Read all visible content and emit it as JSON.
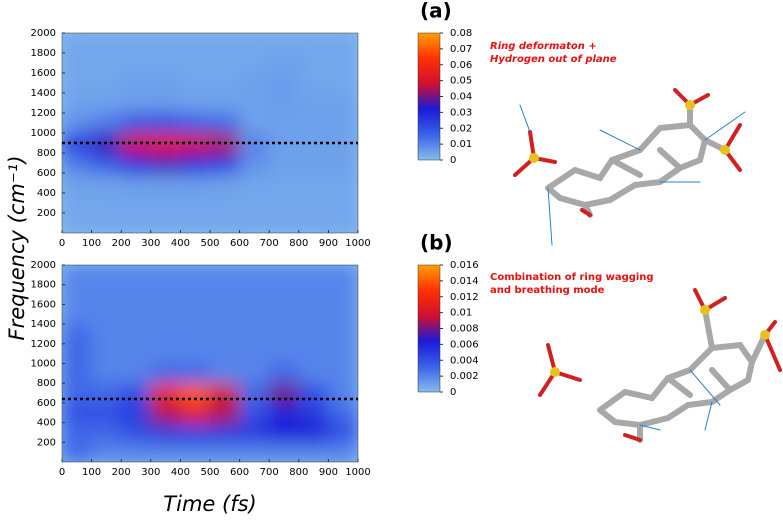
{
  "chart_data": [
    {
      "type": "heatmap",
      "panel_label": "(a)",
      "annotation": [
        "Ring deformaton +",
        "Hydrogen out of plane"
      ],
      "ylabel": "Frequency (cm⁻¹)",
      "xlim": [
        0,
        1000
      ],
      "ylim": [
        0,
        2000
      ],
      "xticks": [
        0,
        100,
        200,
        300,
        400,
        500,
        600,
        700,
        800,
        900,
        1000
      ],
      "yticks": [
        200,
        400,
        600,
        800,
        1000,
        1200,
        1400,
        1600,
        1800,
        2000
      ],
      "xbins": [
        0,
        100,
        200,
        300,
        400,
        500,
        600,
        700,
        800,
        900,
        1000
      ],
      "ybins": [
        0,
        200,
        400,
        600,
        800,
        1000,
        1200,
        1400,
        1600,
        1800,
        2000
      ],
      "z": [
        [
          0.004,
          0.004,
          0.004,
          0.004,
          0.004,
          0.004,
          0.004,
          0.004,
          0.004,
          0.004
        ],
        [
          0.004,
          0.004,
          0.004,
          0.004,
          0.004,
          0.004,
          0.004,
          0.004,
          0.004,
          0.004
        ],
        [
          0.005,
          0.005,
          0.006,
          0.006,
          0.006,
          0.005,
          0.004,
          0.004,
          0.004,
          0.004
        ],
        [
          0.012,
          0.018,
          0.03,
          0.035,
          0.03,
          0.025,
          0.008,
          0.005,
          0.005,
          0.005
        ],
        [
          0.025,
          0.035,
          0.05,
          0.055,
          0.05,
          0.045,
          0.01,
          0.005,
          0.005,
          0.005
        ],
        [
          0.008,
          0.012,
          0.02,
          0.022,
          0.018,
          0.015,
          0.005,
          0.005,
          0.005,
          0.005
        ],
        [
          0.005,
          0.005,
          0.006,
          0.006,
          0.005,
          0.005,
          0.005,
          0.006,
          0.005,
          0.005
        ],
        [
          0.004,
          0.004,
          0.005,
          0.005,
          0.004,
          0.004,
          0.005,
          0.006,
          0.004,
          0.004
        ],
        [
          0.004,
          0.004,
          0.004,
          0.004,
          0.004,
          0.004,
          0.004,
          0.005,
          0.004,
          0.004
        ],
        [
          0.004,
          0.004,
          0.004,
          0.004,
          0.004,
          0.004,
          0.004,
          0.004,
          0.004,
          0.004
        ]
      ],
      "zlim": [
        0,
        0.08
      ],
      "zticks": [
        0,
        0.01,
        0.02,
        0.03,
        0.04,
        0.05,
        0.06,
        0.07,
        0.08
      ],
      "colors": [
        "#86bdec",
        "#3a62e8",
        "#1a1ad8",
        "#d01030",
        "#ff3000",
        "#ffa000"
      ],
      "hline": 900
    },
    {
      "type": "heatmap",
      "panel_label": "(b)",
      "annotation": [
        "Combination of ring wagging",
        "and breathing mode"
      ],
      "xlabel": "Time (fs)",
      "xlim": [
        0,
        1000
      ],
      "ylim": [
        0,
        2000
      ],
      "xticks": [
        0,
        100,
        200,
        300,
        400,
        500,
        600,
        700,
        800,
        900,
        1000
      ],
      "yticks": [
        200,
        400,
        600,
        800,
        1000,
        1200,
        1400,
        1600,
        1800,
        2000
      ],
      "xbins": [
        0,
        100,
        200,
        300,
        400,
        500,
        600,
        700,
        800,
        900,
        1000
      ],
      "ybins": [
        0,
        200,
        400,
        600,
        800,
        1000,
        1200,
        1400,
        1600,
        1800,
        2000
      ],
      "z": [
        [
          0.003,
          0.002,
          0.002,
          0.002,
          0.002,
          0.002,
          0.002,
          0.002,
          0.002,
          0.002
        ],
        [
          0.003,
          0.003,
          0.004,
          0.005,
          0.005,
          0.005,
          0.005,
          0.006,
          0.006,
          0.004
        ],
        [
          0.004,
          0.004,
          0.005,
          0.009,
          0.011,
          0.009,
          0.004,
          0.006,
          0.005,
          0.003
        ],
        [
          0.003,
          0.003,
          0.004,
          0.012,
          0.014,
          0.01,
          0.003,
          0.008,
          0.004,
          0.002
        ],
        [
          0.003,
          0.002,
          0.002,
          0.003,
          0.003,
          0.002,
          0.002,
          0.003,
          0.002,
          0.002
        ],
        [
          0.003,
          0.002,
          0.002,
          0.002,
          0.002,
          0.002,
          0.002,
          0.002,
          0.002,
          0.002
        ],
        [
          0.003,
          0.002,
          0.002,
          0.002,
          0.002,
          0.002,
          0.002,
          0.002,
          0.002,
          0.002
        ],
        [
          0.002,
          0.002,
          0.002,
          0.002,
          0.002,
          0.002,
          0.002,
          0.002,
          0.002,
          0.002
        ],
        [
          0.002,
          0.002,
          0.002,
          0.002,
          0.002,
          0.002,
          0.002,
          0.002,
          0.002,
          0.002
        ],
        [
          0.002,
          0.002,
          0.002,
          0.002,
          0.002,
          0.002,
          0.002,
          0.002,
          0.002,
          0.002
        ]
      ],
      "zlim": [
        0,
        0.016
      ],
      "zticks": [
        0,
        0.002,
        0.004,
        0.006,
        0.008,
        0.01,
        0.012,
        0.014,
        0.016
      ],
      "colors": [
        "#86bdec",
        "#3a62e8",
        "#1a1ad8",
        "#d01030",
        "#ff3000",
        "#ffa000"
      ],
      "hline": 640
    }
  ]
}
